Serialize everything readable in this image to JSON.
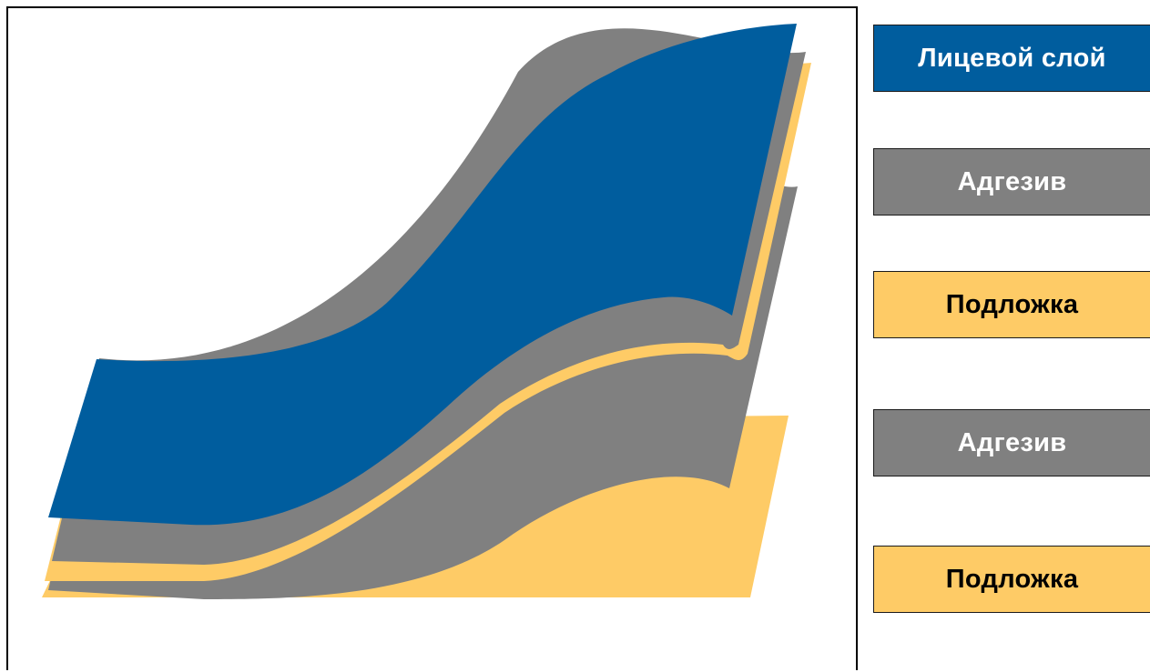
{
  "colors": {
    "face": "#005d9e",
    "adhesive": "#808080",
    "substrate": "#fecb66",
    "frame": "#000000"
  },
  "legend": [
    {
      "label": "Лицевой слой"
    },
    {
      "label": "Адгезив"
    },
    {
      "label": "Подложка"
    },
    {
      "label": "Адгезив"
    },
    {
      "label": "Подложка"
    }
  ]
}
